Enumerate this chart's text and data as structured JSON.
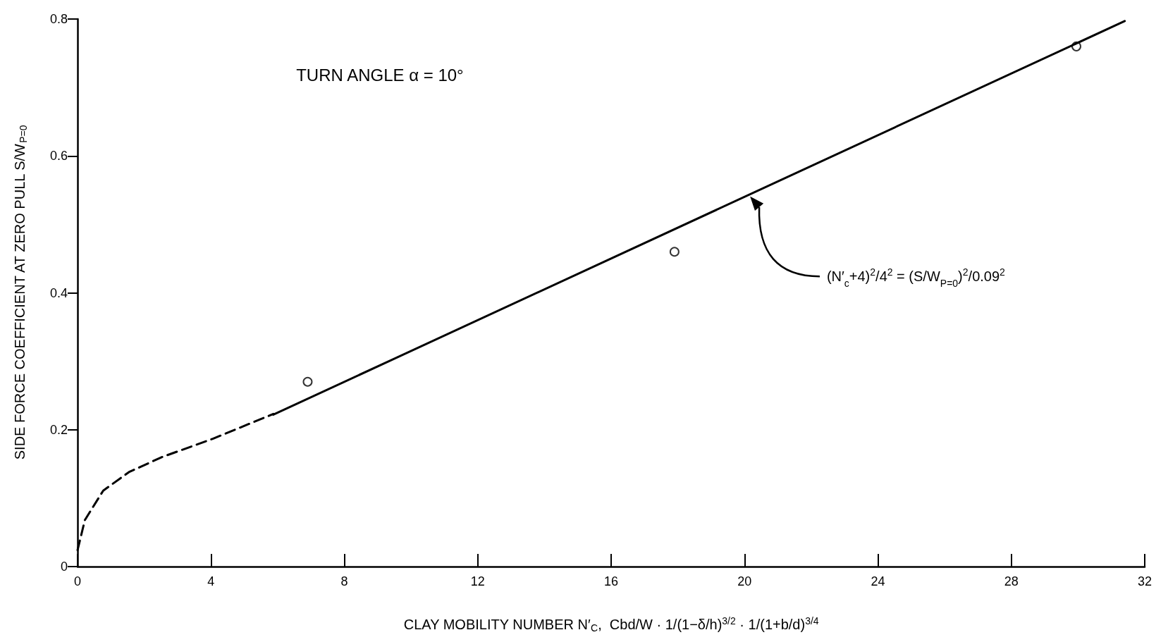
{
  "chart_data": {
    "type": "line",
    "xlabel": "CLAY MOBILITY NUMBER N′$_{C}$,  Cbd/W · 1/(1−δ/h)$^{3/2}$ · 1/(1+b/d)$^{3/4}$",
    "ylabel": "SIDE FORCE COEFFICIENT AT ZERO PULL S/W$_{P=0}$",
    "xlim": [
      0,
      32
    ],
    "xticks": [
      0,
      4,
      8,
      12,
      16,
      20,
      24,
      28,
      32
    ],
    "ylim": [
      0,
      0.8
    ],
    "yticks": [
      0,
      0.2,
      0.4,
      0.6,
      0.8
    ],
    "grid": false,
    "annotations": [
      "TURN ANGLE α = 10°",
      "(N′$_{c}$+4)$^{2}$/4$^{2}$ = (S/W$_{P=0}$)$^{2}$/0.09$^{2}$"
    ],
    "series": [
      {
        "type": "line",
        "color": "#000000",
        "line_style": "dashed",
        "marker": "none",
        "x": [
          0,
          0.22,
          0.77,
          1.54,
          2.53,
          4.07,
          5.87
        ],
        "values": [
          0.024,
          0.068,
          0.111,
          0.138,
          0.16,
          0.187,
          0.223
        ]
      },
      {
        "type": "line",
        "color": "#000000",
        "line_style": "solid",
        "marker": "none",
        "x": [
          5.87,
          31.4
        ],
        "values": [
          0.222,
          0.797
        ]
      },
      {
        "type": "scatter",
        "color": "#000000",
        "marker": "circle",
        "x": [
          6.9,
          17.9,
          29.95
        ],
        "values": [
          0.27,
          0.46,
          0.76
        ]
      }
    ]
  }
}
